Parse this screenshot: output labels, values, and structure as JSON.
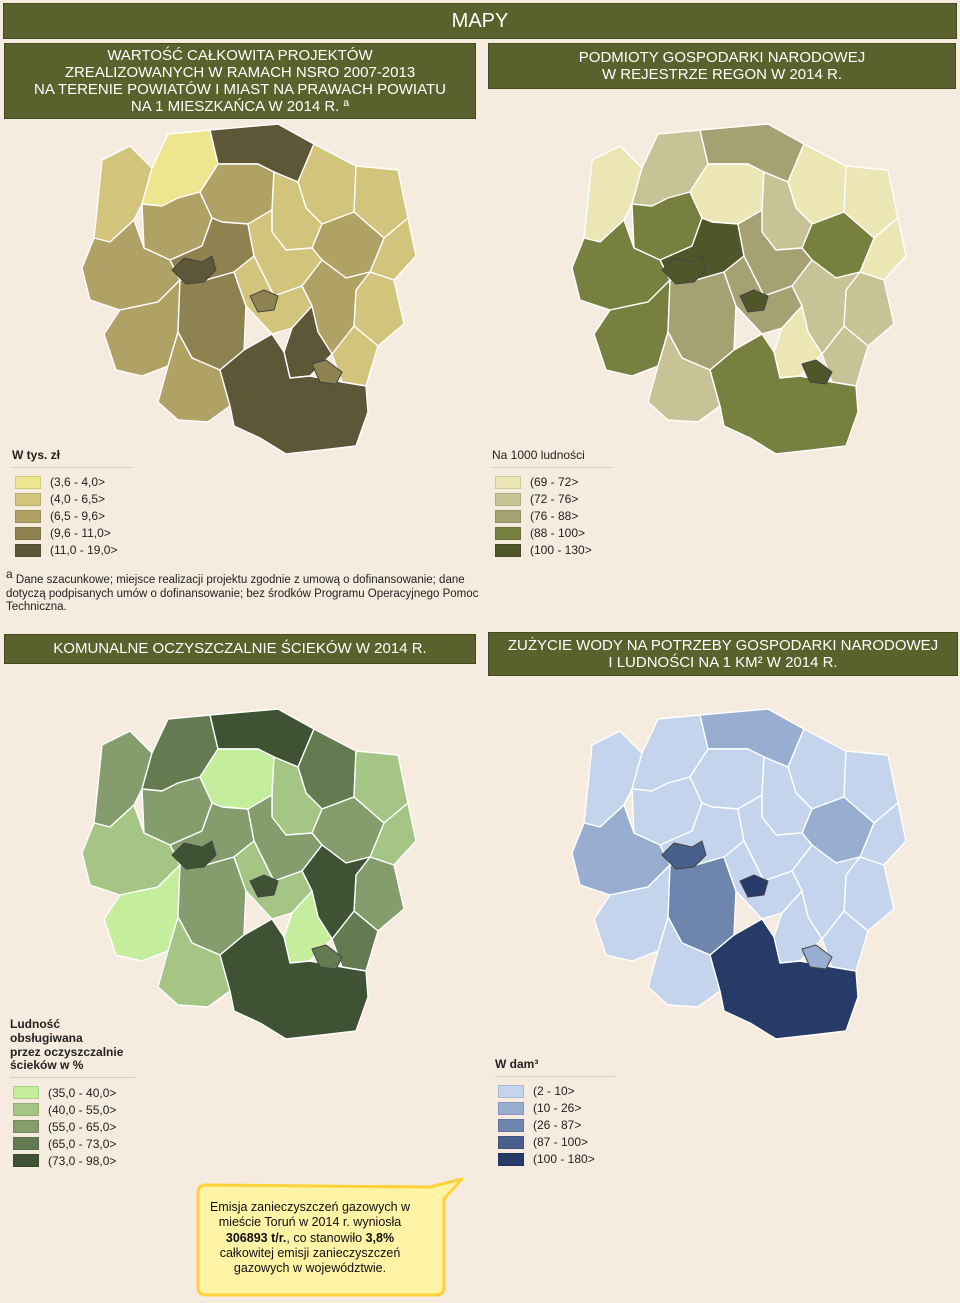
{
  "header": {
    "title": "MAPY"
  },
  "panels": [
    {
      "title_lines": [
        "WARTOŚĆ CAŁKOWITA PROJEKTÓW",
        "ZREALIZOWANYCH W RAMACH NSRO 2007-2013",
        "NA TERENIE POWIATÓW I MIAST NA PRAWACH POWIATU",
        "NA 1 MIESZKAŃCA W 2014 R. ª"
      ],
      "legend_title": "W tys. zł",
      "legend": [
        {
          "label": "(3,6 - 4,0>",
          "color": "#ede68e"
        },
        {
          "label": "(4,0 - 6,5>",
          "color": "#d2c57b"
        },
        {
          "label": "(6,5 - 9,6>",
          "color": "#afa264"
        },
        {
          "label": "(9,6 - 11,0>",
          "color": "#8e8250"
        },
        {
          "label": "(11,0 - 19,0>",
          "color": "#5d5637"
        }
      ]
    },
    {
      "title_lines": [
        "PODMIOTY GOSPODARKI NARODOWEJ",
        "W REJESTRZE REGON W 2014 R."
      ],
      "legend_title": "Na 1000 ludności",
      "legend": [
        {
          "label": "(69 - 72>",
          "color": "#ece6b4"
        },
        {
          "label": "(72 - 76>",
          "color": "#c8c396"
        },
        {
          "label": "(76 - 88>",
          "color": "#a5a173"
        },
        {
          "label": "(88 - 100>",
          "color": "#78803f"
        },
        {
          "label": "(100 - 130>",
          "color": "#50562a"
        }
      ]
    },
    {
      "title_lines": [
        "KOMUNALNE OCZYSZCZALNIE ŚCIEKÓW W 2014 R."
      ],
      "legend_title_lines": [
        "Ludność",
        "obsługiwana",
        "przez oczyszczalnie",
        "ścieków w %"
      ],
      "legend": [
        {
          "label": "(35,0 - 40,0>",
          "color": "#c4ee9c"
        },
        {
          "label": "(40,0 - 55,0>",
          "color": "#a4c583"
        },
        {
          "label": "(55,0 - 65,0>",
          "color": "#859d6c"
        },
        {
          "label": "(65,0 - 73,0>",
          "color": "#647b52"
        },
        {
          "label": "(73,0 - 98,0>",
          "color": "#3f5234"
        }
      ]
    },
    {
      "title_lines": [
        "ZUŻYCIE WODY NA POTRZEBY GOSPODARKI NARODOWEJ",
        "I LUDNOŚCI NA 1 KM² W 2014 R."
      ],
      "legend_title": "W dam³",
      "legend": [
        {
          "label": "(2 - 10>",
          "color": "#c4d4ec"
        },
        {
          "label": "(10 - 26>",
          "color": "#98aed1"
        },
        {
          "label": "(26 - 87>",
          "color": "#6e86ae"
        },
        {
          "label": "(87 - 100>",
          "color": "#495f8c"
        },
        {
          "label": "(100 - 180>",
          "color": "#273b68"
        }
      ]
    }
  ],
  "footnote": {
    "marker": "a",
    "text": "Dane szacunkowe; miejsce realizacji projektu zgodnie z umową o dofinansowanie; dane dotyczą podpisanych umów o dofinansowanie; bez środków Programu Operacyjnego Pomoc Techniczna."
  },
  "callout": {
    "line1": "Emisja zanieczyszczeń gazowych w",
    "line2": "mieście Toruń w 2014 r. wyniosła",
    "value": "306893 t/r.",
    "mid": ", co stanowiło ",
    "share": "3,8%",
    "line4": "całkowitej emisji zanieczyszczeń",
    "line5": "gazowych w województwie."
  },
  "map_classes": [
    [
      1,
      0,
      4,
      1,
      1,
      1,
      1,
      1,
      2,
      2,
      1,
      2,
      3,
      1,
      2,
      2,
      2,
      3,
      1,
      4,
      2,
      4,
      4,
      3,
      3
    ],
    [
      0,
      1,
      2,
      0,
      0,
      0,
      1,
      1,
      3,
      0,
      1,
      3,
      4,
      2,
      1,
      3,
      3,
      2,
      2,
      0,
      1,
      3,
      4,
      4,
      4
    ],
    [
      2,
      3,
      4,
      3,
      1,
      1,
      2,
      3,
      2,
      0,
      1,
      2,
      2,
      2,
      4,
      1,
      0,
      2,
      1,
      0,
      1,
      4,
      4,
      4,
      3
    ],
    [
      0,
      0,
      1,
      0,
      0,
      0,
      0,
      0,
      0,
      0,
      0,
      1,
      0,
      0,
      0,
      1,
      0,
      2,
      0,
      0,
      0,
      4,
      3,
      4,
      1
    ]
  ]
}
